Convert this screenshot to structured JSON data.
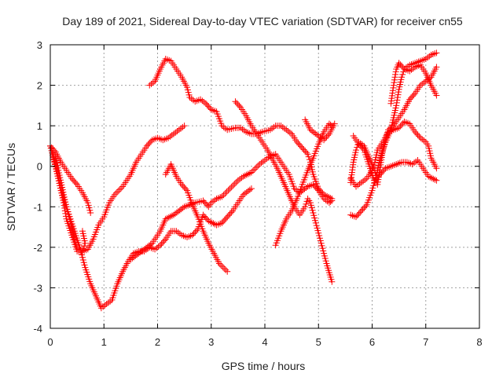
{
  "chart_data": {
    "type": "scatter",
    "title": "Day 189 of 2021, Sidereal Day-to-day VTEC variation (SDTVAR) for receiver cn55",
    "xlabel": "GPS time / hours",
    "ylabel": "SDTVAR / TECUs",
    "xlim": [
      0,
      8
    ],
    "ylim": [
      -4,
      3
    ],
    "x_ticks": [
      "0",
      "1",
      "2",
      "3",
      "4",
      "5",
      "6",
      "7",
      "8"
    ],
    "y_ticks": [
      "-4",
      "-3",
      "-2",
      "-1",
      "0",
      "1",
      "2",
      "3"
    ],
    "grid": true,
    "legend": "none",
    "marker": "+",
    "color": "#ff0000",
    "series": [
      {
        "points": [
          [
            0,
            0.5
          ],
          [
            0.1,
            0.35
          ],
          [
            0.2,
            0.1
          ],
          [
            0.3,
            -0.1
          ],
          [
            0.4,
            -0.3
          ],
          [
            0.5,
            -0.45
          ],
          [
            0.6,
            -0.65
          ],
          [
            0.7,
            -0.9
          ],
          [
            0.75,
            -1.15
          ]
        ]
      },
      {
        "points": [
          [
            0,
            0.5
          ],
          [
            0.08,
            0.1
          ],
          [
            0.15,
            -0.3
          ],
          [
            0.2,
            -0.6
          ],
          [
            0.3,
            -1.0
          ],
          [
            0.4,
            -1.5
          ],
          [
            0.45,
            -1.8
          ],
          [
            0.5,
            -2.0
          ],
          [
            0.6,
            -2.1
          ],
          [
            0.65,
            -1.9
          ],
          [
            0.6,
            -1.6
          ]
        ]
      },
      {
        "points": [
          [
            0.05,
            0.3
          ],
          [
            0.15,
            -0.3
          ],
          [
            0.25,
            -0.9
          ],
          [
            0.3,
            -1.3
          ],
          [
            0.4,
            -1.7
          ],
          [
            0.5,
            -2.1
          ],
          [
            0.6,
            -2.1
          ],
          [
            0.7,
            -2.05
          ],
          [
            0.8,
            -1.8
          ],
          [
            0.9,
            -1.45
          ],
          [
            1.0,
            -1.25
          ],
          [
            1.1,
            -0.9
          ],
          [
            1.2,
            -0.7
          ],
          [
            1.35,
            -0.5
          ],
          [
            1.5,
            -0.2
          ],
          [
            1.6,
            0.1
          ],
          [
            1.7,
            0.3
          ],
          [
            1.8,
            0.5
          ],
          [
            1.9,
            0.65
          ],
          [
            2.0,
            0.7
          ],
          [
            2.1,
            0.65
          ],
          [
            2.2,
            0.7
          ],
          [
            2.3,
            0.8
          ],
          [
            2.4,
            0.9
          ],
          [
            2.5,
            1.0
          ]
        ]
      },
      {
        "points": [
          [
            0.1,
            0.2
          ],
          [
            0.2,
            -0.4
          ],
          [
            0.3,
            -1.0
          ],
          [
            0.45,
            -1.6
          ],
          [
            0.55,
            -2.0
          ],
          [
            0.65,
            -2.5
          ],
          [
            0.75,
            -2.9
          ],
          [
            0.85,
            -3.2
          ],
          [
            0.95,
            -3.5
          ],
          [
            1.05,
            -3.4
          ],
          [
            1.15,
            -3.3
          ],
          [
            1.25,
            -2.9
          ],
          [
            1.35,
            -2.6
          ],
          [
            1.45,
            -2.35
          ],
          [
            1.55,
            -2.15
          ],
          [
            1.65,
            -2.1
          ],
          [
            1.75,
            -2.1
          ],
          [
            1.85,
            -2.0
          ],
          [
            1.95,
            -2.05
          ],
          [
            2.05,
            -1.95
          ],
          [
            2.15,
            -1.8
          ],
          [
            2.25,
            -1.6
          ],
          [
            2.35,
            -1.6
          ],
          [
            2.45,
            -1.7
          ],
          [
            2.55,
            -1.75
          ],
          [
            2.65,
            -1.7
          ],
          [
            2.75,
            -1.55
          ],
          [
            2.85,
            -1.2
          ],
          [
            2.95,
            -1.35
          ],
          [
            3.1,
            -1.45
          ],
          [
            3.2,
            -1.4
          ],
          [
            3.3,
            -1.25
          ],
          [
            3.4,
            -1.1
          ],
          [
            3.5,
            -0.9
          ],
          [
            3.6,
            -0.7
          ],
          [
            3.75,
            -0.55
          ]
        ]
      },
      {
        "points": [
          [
            1.5,
            -2.3
          ],
          [
            1.7,
            -2.1
          ],
          [
            1.9,
            -1.9
          ],
          [
            2.05,
            -1.6
          ],
          [
            2.15,
            -1.3
          ],
          [
            2.3,
            -1.2
          ],
          [
            2.5,
            -1.0
          ],
          [
            2.7,
            -0.9
          ],
          [
            2.85,
            -0.85
          ],
          [
            2.95,
            -1.0
          ],
          [
            3.0,
            -0.9
          ],
          [
            3.1,
            -0.8
          ],
          [
            3.2,
            -0.75
          ],
          [
            3.35,
            -0.55
          ],
          [
            3.5,
            -0.35
          ],
          [
            3.6,
            -0.25
          ],
          [
            3.75,
            -0.15
          ],
          [
            3.9,
            0.05
          ],
          [
            4.0,
            0.15
          ],
          [
            4.1,
            0.25
          ],
          [
            4.2,
            0.3
          ],
          [
            4.3,
            0.1
          ],
          [
            4.45,
            -0.2
          ],
          [
            4.55,
            -0.55
          ],
          [
            4.65,
            -0.65
          ],
          [
            4.8,
            -0.5
          ],
          [
            4.9,
            -0.45
          ],
          [
            5.0,
            -0.6
          ],
          [
            5.1,
            -0.8
          ],
          [
            5.2,
            -0.9
          ],
          [
            5.25,
            -0.85
          ]
        ]
      },
      {
        "points": [
          [
            1.85,
            2.0
          ],
          [
            1.95,
            2.1
          ],
          [
            2.05,
            2.4
          ],
          [
            2.15,
            2.65
          ],
          [
            2.25,
            2.6
          ],
          [
            2.35,
            2.4
          ],
          [
            2.45,
            2.2
          ],
          [
            2.55,
            1.95
          ],
          [
            2.6,
            1.7
          ],
          [
            2.7,
            1.6
          ],
          [
            2.8,
            1.65
          ],
          [
            2.9,
            1.55
          ],
          [
            3.0,
            1.4
          ],
          [
            3.1,
            1.35
          ],
          [
            3.2,
            1.0
          ],
          [
            3.3,
            0.9
          ],
          [
            3.45,
            0.95
          ],
          [
            3.55,
            0.95
          ],
          [
            3.65,
            0.85
          ],
          [
            3.75,
            0.8
          ],
          [
            3.85,
            0.8
          ],
          [
            3.95,
            0.85
          ],
          [
            4.1,
            0.9
          ],
          [
            4.2,
            1.0
          ],
          [
            4.3,
            1.0
          ],
          [
            4.4,
            0.9
          ],
          [
            4.5,
            0.8
          ],
          [
            4.6,
            0.6
          ],
          [
            4.7,
            0.45
          ],
          [
            4.8,
            0.3
          ],
          [
            4.85,
            0.1
          ],
          [
            4.9,
            -0.2
          ],
          [
            5.0,
            -0.55
          ],
          [
            5.1,
            -0.7
          ],
          [
            5.25,
            -0.8
          ]
        ]
      },
      {
        "points": [
          [
            2.15,
            -0.2
          ],
          [
            2.25,
            0.05
          ],
          [
            2.35,
            -0.25
          ],
          [
            2.45,
            -0.45
          ],
          [
            2.55,
            -0.6
          ],
          [
            2.65,
            -0.95
          ],
          [
            2.75,
            -1.25
          ],
          [
            2.85,
            -1.6
          ],
          [
            2.95,
            -1.9
          ],
          [
            3.05,
            -2.15
          ],
          [
            3.15,
            -2.4
          ],
          [
            3.3,
            -2.6
          ]
        ]
      },
      {
        "points": [
          [
            3.45,
            1.6
          ],
          [
            3.55,
            1.45
          ],
          [
            3.65,
            1.25
          ],
          [
            3.75,
            1.0
          ],
          [
            3.85,
            0.8
          ],
          [
            3.95,
            0.6
          ],
          [
            4.05,
            0.4
          ],
          [
            4.15,
            0.15
          ],
          [
            4.25,
            -0.1
          ],
          [
            4.35,
            -0.4
          ],
          [
            4.45,
            -0.7
          ],
          [
            4.55,
            -1.0
          ],
          [
            4.65,
            -1.2
          ],
          [
            4.75,
            -1.0
          ],
          [
            4.8,
            -0.8
          ],
          [
            4.85,
            -0.9
          ],
          [
            4.95,
            -1.4
          ],
          [
            5.05,
            -1.9
          ],
          [
            5.15,
            -2.4
          ],
          [
            5.25,
            -2.85
          ]
        ]
      },
      {
        "points": [
          [
            4.2,
            -1.95
          ],
          [
            4.3,
            -1.6
          ],
          [
            4.4,
            -1.3
          ],
          [
            4.5,
            -1.1
          ],
          [
            4.6,
            -0.8
          ],
          [
            4.7,
            -0.45
          ],
          [
            4.8,
            -0.1
          ],
          [
            4.9,
            0.2
          ],
          [
            5.0,
            0.55
          ],
          [
            5.1,
            0.85
          ],
          [
            5.2,
            1.05
          ],
          [
            5.25,
            1.0
          ]
        ]
      },
      {
        "points": [
          [
            4.75,
            1.15
          ],
          [
            4.85,
            0.9
          ],
          [
            5.0,
            0.75
          ],
          [
            5.1,
            0.65
          ],
          [
            5.2,
            0.8
          ],
          [
            5.3,
            1.05
          ]
        ]
      },
      {
        "points": [
          [
            5.6,
            -1.2
          ],
          [
            5.7,
            -1.25
          ],
          [
            5.8,
            -1.1
          ],
          [
            5.9,
            -0.95
          ],
          [
            6.0,
            -0.6
          ],
          [
            6.05,
            -0.35
          ],
          [
            6.15,
            -0.2
          ],
          [
            6.25,
            -0.05
          ],
          [
            6.35,
            0.0
          ],
          [
            6.45,
            0.05
          ],
          [
            6.55,
            0.1
          ],
          [
            6.65,
            0.1
          ],
          [
            6.75,
            0.05
          ],
          [
            6.85,
            0.15
          ],
          [
            6.95,
            -0.05
          ],
          [
            7.05,
            -0.25
          ],
          [
            7.2,
            -0.35
          ]
        ]
      },
      {
        "points": [
          [
            5.6,
            -0.3
          ],
          [
            5.7,
            -0.5
          ],
          [
            5.8,
            -0.4
          ],
          [
            5.9,
            -0.3
          ],
          [
            6.0,
            -0.1
          ],
          [
            6.05,
            0.1
          ],
          [
            6.1,
            0.4
          ],
          [
            6.2,
            0.6
          ],
          [
            6.3,
            0.85
          ],
          [
            6.4,
            0.9
          ],
          [
            6.5,
            0.95
          ],
          [
            6.6,
            1.1
          ],
          [
            6.7,
            1.05
          ],
          [
            6.8,
            0.85
          ],
          [
            6.9,
            0.7
          ],
          [
            7.0,
            0.6
          ],
          [
            7.05,
            0.5
          ],
          [
            7.1,
            0.2
          ],
          [
            7.2,
            -0.05
          ]
        ]
      },
      {
        "points": [
          [
            5.6,
            -0.4
          ],
          [
            5.65,
            0.1
          ],
          [
            5.7,
            0.4
          ],
          [
            5.75,
            0.6
          ],
          [
            5.85,
            0.5
          ],
          [
            5.95,
            0.2
          ],
          [
            6.05,
            -0.1
          ],
          [
            6.1,
            -0.45
          ],
          [
            6.2,
            0.4
          ],
          [
            6.3,
            0.9
          ],
          [
            6.4,
            1.0
          ],
          [
            6.5,
            1.2
          ],
          [
            6.6,
            1.4
          ],
          [
            6.7,
            1.65
          ],
          [
            6.8,
            1.8
          ],
          [
            6.9,
            2.0
          ],
          [
            7.0,
            2.1
          ],
          [
            7.1,
            2.2
          ],
          [
            7.2,
            2.45
          ]
        ]
      },
      {
        "points": [
          [
            5.65,
            0.75
          ],
          [
            5.75,
            0.55
          ],
          [
            5.85,
            0.4
          ],
          [
            5.95,
            0.0
          ],
          [
            6.05,
            -0.4
          ],
          [
            6.15,
            0.2
          ],
          [
            6.25,
            0.6
          ],
          [
            6.35,
            0.9
          ],
          [
            6.45,
            1.5
          ],
          [
            6.5,
            1.9
          ],
          [
            6.55,
            2.2
          ],
          [
            6.6,
            2.4
          ],
          [
            6.7,
            2.5
          ],
          [
            6.8,
            2.55
          ],
          [
            6.9,
            2.6
          ],
          [
            7.0,
            2.65
          ],
          [
            7.1,
            2.75
          ],
          [
            7.2,
            2.8
          ]
        ]
      },
      {
        "points": [
          [
            6.35,
            1.55
          ],
          [
            6.4,
            2.0
          ],
          [
            6.45,
            2.4
          ],
          [
            6.5,
            2.55
          ],
          [
            6.6,
            2.4
          ],
          [
            6.7,
            2.35
          ],
          [
            6.8,
            2.45
          ],
          [
            6.9,
            2.5
          ],
          [
            7.0,
            2.3
          ],
          [
            7.1,
            2.0
          ],
          [
            7.2,
            1.75
          ]
        ]
      }
    ]
  }
}
